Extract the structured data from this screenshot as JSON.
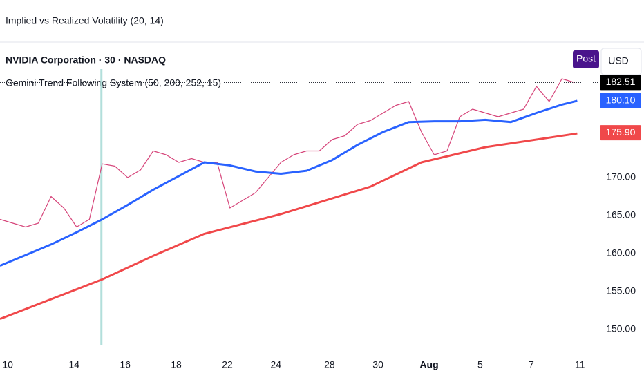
{
  "header": {
    "indicator": "Implied vs Realized Volatility (20, 14)",
    "symbol": "NVIDIA Corporation · 30 · NASDAQ",
    "study": "Gemini Trend Following System (50, 200, 252, 15)",
    "post_button": "Post",
    "currency": "USD"
  },
  "chart_data": {
    "type": "line",
    "xlim": [
      0,
      23.4
    ],
    "ylim": [
      148,
      184
    ],
    "xticks": [
      {
        "value": 0.3,
        "label": "10"
      },
      {
        "value": 2.9,
        "label": "14"
      },
      {
        "value": 4.9,
        "label": "16"
      },
      {
        "value": 6.9,
        "label": "18"
      },
      {
        "value": 8.9,
        "label": "22"
      },
      {
        "value": 10.8,
        "label": "24"
      },
      {
        "value": 12.9,
        "label": "28"
      },
      {
        "value": 14.8,
        "label": "30"
      },
      {
        "value": 16.8,
        "label": "Aug"
      },
      {
        "value": 18.8,
        "label": "5"
      },
      {
        "value": 20.8,
        "label": "7"
      },
      {
        "value": 22.7,
        "label": "11"
      }
    ],
    "yticks": [
      {
        "value": 150,
        "label": "150.00"
      },
      {
        "value": 155,
        "label": "155.00"
      },
      {
        "value": 160,
        "label": "160.00"
      },
      {
        "value": 165,
        "label": "165.00"
      },
      {
        "value": 170,
        "label": "170.00"
      }
    ],
    "highlight_x": 3.97,
    "series": [
      {
        "color": "#d6457a",
        "width": 1.2,
        "x": [
          0,
          0.5,
          1,
          1.5,
          2,
          2.5,
          3,
          3.5,
          4,
          4.5,
          5,
          5.5,
          6,
          6.5,
          7,
          7.5,
          8,
          8.5,
          9,
          9.5,
          10,
          10.5,
          11,
          11.5,
          12,
          12.5,
          13,
          13.5,
          14,
          14.5,
          15,
          15.5,
          16,
          16.5,
          17,
          17.5,
          18,
          18.5,
          19,
          19.5,
          20,
          20.5,
          21,
          21.5,
          22,
          22.5
        ],
        "values": [
          164.5,
          164,
          163.5,
          164,
          167.5,
          166,
          163.5,
          164.5,
          171.8,
          171.5,
          170,
          171,
          173.5,
          173,
          172,
          172.5,
          172,
          172,
          166,
          167,
          168,
          170,
          172,
          173,
          173.5,
          173.5,
          175,
          175.5,
          177,
          177.5,
          178.5,
          179.5,
          180,
          176,
          173,
          173.5,
          178,
          179,
          178.5,
          178,
          178.5,
          179,
          182,
          180,
          183,
          182.5
        ]
      },
      {
        "color": "#2962ff",
        "width": 3,
        "x": [
          0,
          1,
          2,
          3,
          4,
          5,
          6,
          7,
          8,
          9,
          10,
          11,
          12,
          13,
          14,
          15,
          16,
          17,
          18,
          19,
          20,
          21,
          22,
          22.6
        ],
        "values": [
          158.4,
          159.8,
          161.2,
          162.8,
          164.5,
          166.4,
          168.4,
          170.2,
          172,
          171.6,
          170.8,
          170.5,
          170.9,
          172.3,
          174.3,
          176,
          177.3,
          177.4,
          177.4,
          177.6,
          177.3,
          178.5,
          179.6,
          180.1
        ]
      },
      {
        "color": "#f0484a",
        "width": 3,
        "x": [
          0,
          4,
          6,
          8,
          11,
          14.5,
          16.5,
          19,
          22.6
        ],
        "values": [
          151.4,
          156.6,
          159.7,
          162.6,
          165.2,
          168.8,
          172,
          174,
          175.8
        ]
      }
    ],
    "price_tags": [
      {
        "value": 182.51,
        "label": "182.51",
        "color": "#000000"
      },
      {
        "value": 180.1,
        "label": "180.10",
        "color": "#2962ff"
      },
      {
        "value": 175.9,
        "label": "175.90",
        "color": "#f0484a"
      }
    ]
  }
}
